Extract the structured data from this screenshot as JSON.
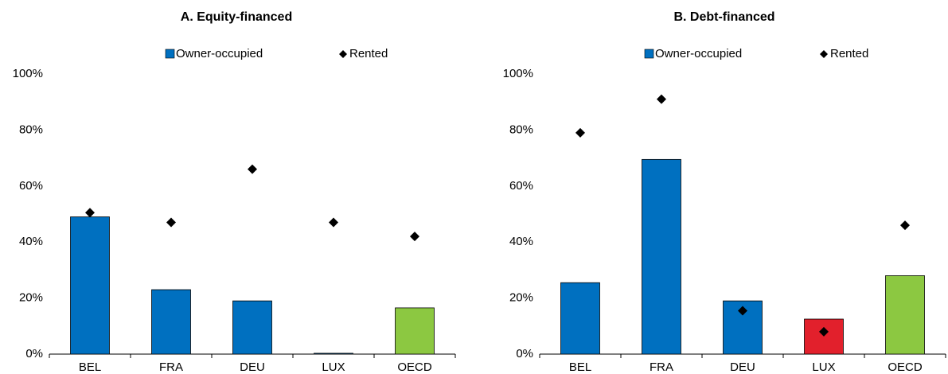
{
  "chart_data": [
    {
      "type": "bar",
      "title": "A. Equity-financed",
      "categories": [
        "BEL",
        "FRA",
        "DEU",
        "LUX",
        "OECD"
      ],
      "series": [
        {
          "name": "Owner-occupied",
          "color": "#0070c0",
          "colors": [
            "#0070c0",
            "#0070c0",
            "#0070c0",
            "#0070c0",
            "#8cc841"
          ],
          "values": [
            49,
            23,
            19,
            0.3,
            16.5
          ]
        },
        {
          "name": "Rented",
          "type": "scatter",
          "color": "#000000",
          "values": [
            50.5,
            47,
            66,
            47,
            42
          ]
        }
      ],
      "ylim": [
        0,
        100
      ],
      "yticks": [
        {
          "value": 0,
          "label": "0%"
        },
        {
          "value": 20,
          "label": "20%"
        },
        {
          "value": 40,
          "label": "40%"
        },
        {
          "value": 60,
          "label": "60%"
        },
        {
          "value": 80,
          "label": "80%"
        },
        {
          "value": 100,
          "label": "100%"
        }
      ],
      "grid": false
    },
    {
      "type": "bar",
      "title": "B. Debt-financed",
      "categories": [
        "BEL",
        "FRA",
        "DEU",
        "LUX",
        "OECD"
      ],
      "series": [
        {
          "name": "Owner-occupied",
          "color": "#0070c0",
          "colors": [
            "#0070c0",
            "#0070c0",
            "#0070c0",
            "#e2202c",
            "#8cc841"
          ],
          "values": [
            25.5,
            69.5,
            19,
            12.5,
            28
          ]
        },
        {
          "name": "Rented",
          "type": "scatter",
          "color": "#000000",
          "values": [
            79,
            91,
            15.5,
            8,
            46
          ]
        }
      ],
      "ylim": [
        0,
        100
      ],
      "yticks": [
        {
          "value": 0,
          "label": "0%"
        },
        {
          "value": 20,
          "label": "20%"
        },
        {
          "value": 40,
          "label": "40%"
        },
        {
          "value": 60,
          "label": "60%"
        },
        {
          "value": 80,
          "label": "80%"
        },
        {
          "value": 100,
          "label": "100%"
        }
      ],
      "grid": false
    }
  ]
}
